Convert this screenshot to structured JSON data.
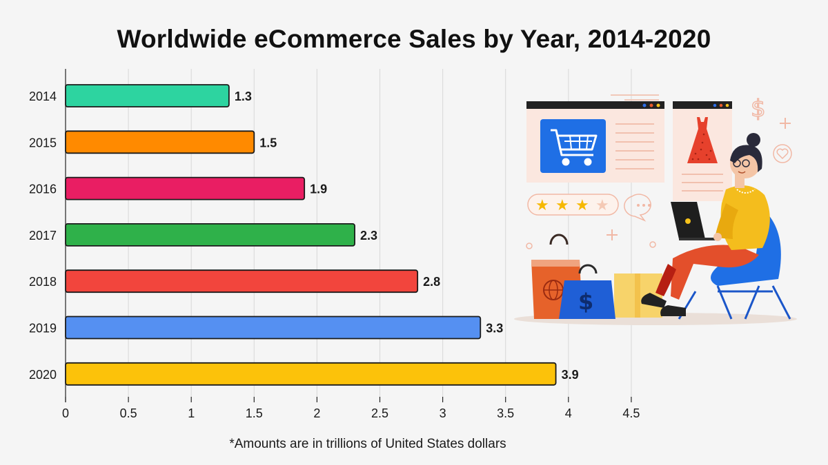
{
  "title": "Worldwide eCommerce Sales by Year, 2014-2020",
  "footnote": "*Amounts are in trillions of United States dollars",
  "chart_data": {
    "type": "bar",
    "orientation": "horizontal",
    "title": "Worldwide eCommerce Sales by Year, 2014-2020",
    "categories": [
      "2014",
      "2015",
      "2016",
      "2017",
      "2018",
      "2019",
      "2020"
    ],
    "values": [
      1.3,
      1.5,
      1.9,
      2.3,
      2.8,
      3.3,
      3.9
    ],
    "value_labels": [
      "1.3",
      "1.5",
      "1.9",
      "2.3",
      "2.8",
      "3.3",
      "3.9"
    ],
    "bar_colors": [
      "#2dd4a0",
      "#ff8a00",
      "#e91e63",
      "#2fb14a",
      "#f2453d",
      "#5590f2",
      "#fcc20a"
    ],
    "xlim": [
      0,
      4.5
    ],
    "x_ticks": [
      0,
      0.5,
      1,
      1.5,
      2,
      2.5,
      3,
      3.5,
      4,
      4.5
    ],
    "x_tick_labels": [
      "0",
      "0.5",
      "1",
      "1.5",
      "2",
      "2.5",
      "3",
      "3.5",
      "4",
      "4.5"
    ],
    "xlabel": "",
    "ylabel": "",
    "grid": "vertical",
    "legend": "none"
  },
  "illustration": {
    "icons": [
      "shopping-cart-icon",
      "dress-icon",
      "dollar-sign-icon",
      "heart-icon",
      "speech-bubble-icon",
      "star-rating-icon",
      "shopping-bag-icon",
      "laptop-icon"
    ],
    "rating_stars": 4,
    "accent_colors": [
      "#1f6fe5",
      "#f6c21b",
      "#ec5a2a",
      "#e6412c"
    ]
  }
}
